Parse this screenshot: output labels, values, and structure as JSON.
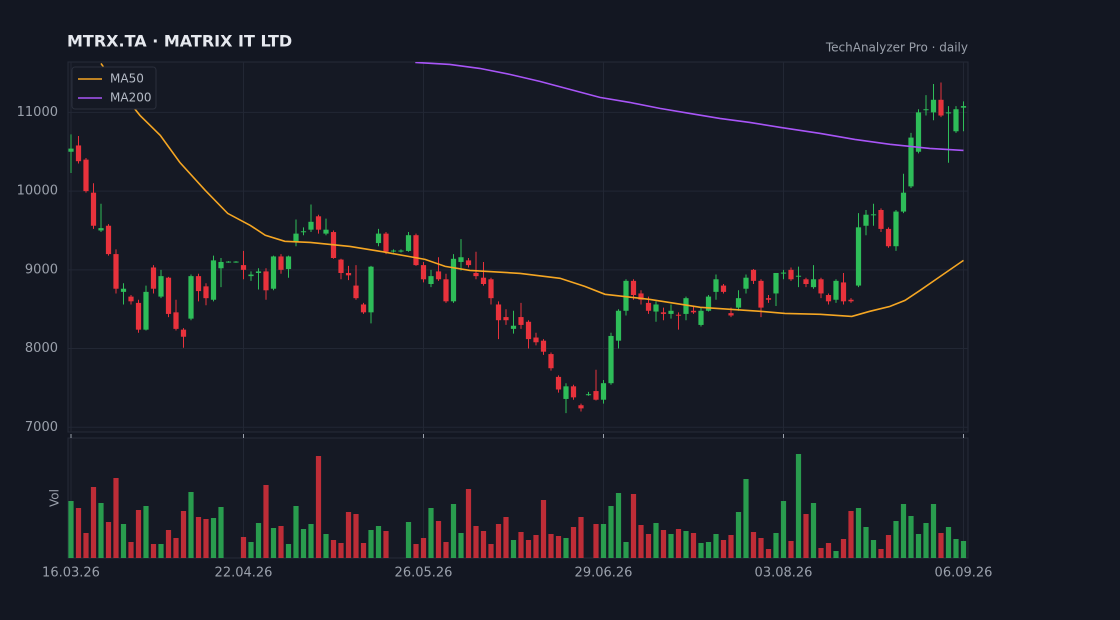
{
  "chart_data": {
    "type": "candlestick",
    "title": "MTRX.TA  ·  MATRIX IT LTD",
    "subtitle": "TechAnalyzer Pro · daily",
    "volume_label": "Vol",
    "up_color": "#2ebd59",
    "down_color": "#e8323c",
    "grid": true,
    "legend": "upper left",
    "x": [
      0,
      1,
      2,
      3,
      4,
      5,
      6,
      7,
      8,
      9,
      10,
      11,
      12,
      13,
      14,
      15,
      16,
      17,
      18,
      19,
      20,
      21,
      22,
      23,
      24,
      25,
      26,
      27,
      28,
      29,
      30,
      31,
      32,
      33,
      34,
      35,
      36,
      37,
      38,
      39,
      40,
      41,
      42,
      43,
      44,
      45,
      46,
      47,
      48,
      49,
      50,
      51,
      52,
      53,
      54,
      55,
      56,
      57,
      58,
      59,
      60,
      61,
      62,
      63,
      64,
      65,
      66,
      67,
      68,
      69,
      70,
      71,
      72,
      73,
      74,
      75,
      76,
      77,
      78,
      79,
      80,
      81,
      82,
      83,
      84,
      85,
      86,
      87,
      88,
      89,
      90,
      91,
      92,
      93,
      94,
      95,
      96,
      97,
      98,
      99,
      100,
      101,
      102,
      103,
      104,
      105,
      106,
      107,
      108,
      109,
      110,
      111,
      112,
      113,
      114,
      115,
      116,
      117,
      118,
      119
    ],
    "open": [
      10500,
      10580,
      10400,
      9980,
      9500,
      9560,
      9200,
      8720,
      8660,
      8580,
      8240,
      9030,
      8660,
      8900,
      8460,
      8240,
      8380,
      8920,
      8790,
      8620,
      9020,
      9100,
      9095,
      9060,
      8920,
      8960,
      8980,
      8760,
      9170,
      9010,
      9350,
      9480,
      9510,
      9680,
      9460,
      9480,
      9130,
      8960,
      8800,
      8560,
      8460,
      9340,
      9460,
      9235,
      9235,
      9240,
      9440,
      9060,
      8820,
      8980,
      8880,
      8600,
      9100,
      9120,
      8960,
      8900,
      8880,
      8560,
      8400,
      8250,
      8400,
      8340,
      8140,
      8100,
      7930,
      7640,
      7360,
      7520,
      7280,
      7410,
      7460,
      7350,
      7560,
      8100,
      8480,
      8860,
      8700,
      8580,
      8470,
      8460,
      8440,
      8430,
      8440,
      8480,
      8300,
      8480,
      8720,
      8800,
      8450,
      8520,
      8760,
      9000,
      8860,
      8640,
      8700,
      8955,
      9000,
      8920,
      8880,
      8780,
      8880,
      8680,
      8620,
      8840,
      8620,
      8800,
      9560,
      9695,
      9760,
      9520,
      9300,
      9740,
      10060,
      10500,
      11030,
      11000,
      11160,
      10990,
      10760,
      11060
    ],
    "high": [
      10720,
      10700,
      10420,
      10100,
      9840,
      9580,
      9260,
      8830,
      8680,
      8620,
      8800,
      9060,
      9000,
      8910,
      8620,
      8260,
      8940,
      8950,
      8830,
      9180,
      9150,
      9110,
      9110,
      9240,
      8980,
      9020,
      9020,
      9180,
      9200,
      9180,
      9640,
      9540,
      9830,
      9700,
      9650,
      9500,
      9140,
      9050,
      9060,
      8580,
      9050,
      9520,
      9480,
      9260,
      9260,
      9480,
      9460,
      9100,
      9000,
      9160,
      8950,
      9200,
      9390,
      9150,
      9230,
      9100,
      8900,
      8600,
      8500,
      8480,
      8580,
      8360,
      8200,
      8120,
      7950,
      7660,
      7560,
      7540,
      7300,
      7450,
      7730,
      7600,
      8200,
      8500,
      8880,
      8880,
      8740,
      8660,
      8600,
      8520,
      8560,
      8460,
      8660,
      8540,
      8520,
      8680,
      8940,
      8820,
      8520,
      8740,
      8940,
      9010,
      8880,
      8680,
      8960,
      9000,
      9030,
      9040,
      8900,
      9060,
      8900,
      8700,
      8880,
      8960,
      8640,
      9720,
      9760,
      9840,
      9780,
      9540,
      9760,
      10220,
      10740,
      11040,
      11220,
      11360,
      11380,
      11080,
      11080,
      11140
    ],
    "low": [
      10230,
      10350,
      9980,
      9520,
      9480,
      9180,
      8700,
      8560,
      8560,
      8200,
      8230,
      8700,
      8640,
      8400,
      8230,
      8010,
      8360,
      8600,
      8550,
      8600,
      8780,
      9090,
      9090,
      8880,
      8860,
      8750,
      8620,
      8740,
      8950,
      8900,
      9300,
      9440,
      9480,
      9460,
      9440,
      9140,
      8880,
      8870,
      8620,
      8440,
      8320,
      9300,
      9200,
      9220,
      9220,
      9230,
      9050,
      8840,
      8780,
      8860,
      8580,
      8580,
      8990,
      9030,
      8880,
      8800,
      8560,
      8120,
      8300,
      8190,
      8250,
      8000,
      8040,
      7920,
      7720,
      7440,
      7180,
      7350,
      7200,
      7400,
      7340,
      7300,
      7540,
      8000,
      8420,
      8620,
      8560,
      8440,
      8340,
      8360,
      8380,
      8240,
      8360,
      8440,
      8280,
      8470,
      8620,
      8700,
      8400,
      8480,
      8700,
      8820,
      8400,
      8580,
      8540,
      8880,
      8860,
      8780,
      8780,
      8760,
      8640,
      8560,
      8580,
      8560,
      8580,
      8780,
      9440,
      9560,
      9480,
      9280,
      9240,
      9720,
      10040,
      10480,
      10960,
      10900,
      10940,
      10360,
      10740,
      10760
    ],
    "close": [
      10540,
      10380,
      10000,
      9560,
      9530,
      9200,
      8760,
      8760,
      8600,
      8240,
      8720,
      8760,
      8920,
      8440,
      8250,
      8150,
      8920,
      8730,
      8640,
      9120,
      9100,
      9105,
      9105,
      9000,
      8940,
      8980,
      8740,
      9170,
      9000,
      9170,
      9460,
      9490,
      9610,
      9510,
      9510,
      9150,
      8960,
      8930,
      8640,
      8460,
      9040,
      9460,
      9230,
      9245,
      9245,
      9440,
      9060,
      8880,
      8920,
      8880,
      8600,
      9140,
      9160,
      9060,
      8920,
      8820,
      8640,
      8360,
      8360,
      8290,
      8300,
      8120,
      8080,
      7960,
      7750,
      7480,
      7520,
      7380,
      7240,
      7420,
      7350,
      7560,
      8160,
      8480,
      8860,
      8680,
      8620,
      8480,
      8560,
      8440,
      8480,
      8420,
      8640,
      8460,
      8480,
      8660,
      8880,
      8720,
      8420,
      8640,
      8900,
      8860,
      8520,
      8620,
      8960,
      8965,
      8880,
      8925,
      8820,
      8880,
      8700,
      8600,
      8860,
      8600,
      8600,
      9540,
      9700,
      9705,
      9520,
      9300,
      9740,
      9980,
      10680,
      11000,
      11040,
      11160,
      10960,
      11000,
      11040,
      11080
    ],
    "volume": [
      57,
      50,
      25,
      71,
      55,
      36,
      80,
      34,
      16,
      48,
      52,
      14,
      14,
      28,
      20,
      47,
      66,
      41,
      39,
      40,
      51,
      0,
      0,
      21,
      16,
      35,
      73,
      30,
      32,
      14,
      52,
      29,
      34,
      102,
      24,
      18,
      15,
      46,
      44,
      15,
      28,
      32,
      27,
      0,
      0,
      36,
      14,
      20,
      50,
      37,
      16,
      54,
      25,
      69,
      32,
      27,
      14,
      34,
      41,
      18,
      26,
      18,
      23,
      58,
      24,
      22,
      20,
      31,
      41,
      0,
      34,
      34,
      52,
      65,
      16,
      64,
      33,
      24,
      35,
      28,
      24,
      29,
      27,
      25,
      15,
      16,
      24,
      18,
      23,
      46,
      79,
      26,
      20,
      9,
      25,
      57,
      17,
      104,
      44,
      55,
      10,
      15,
      7,
      19,
      47,
      50,
      31,
      18,
      9,
      23,
      37,
      54,
      42,
      24,
      35,
      54,
      25,
      31,
      19,
      17
    ],
    "series": [
      {
        "name": "MA50",
        "color": "#f5a623",
        "x": [
          4,
          6.5,
          9.2,
          11.9,
          14.5,
          17.9,
          20.9,
          23.9,
          25.9,
          28.5,
          31.9,
          37.2,
          41.2,
          47.2,
          49.9,
          53.2,
          59.9,
          65.2,
          68.5,
          71.2,
          77.2,
          83.9,
          91.9,
          95.2,
          99.9,
          104.1,
          106.5,
          109.2,
          111.2,
          113.2,
          115.9,
          119
        ],
        "values": [
          11622,
          11279,
          10962,
          10708,
          10365,
          10010,
          9717,
          9565,
          9438,
          9362,
          9349,
          9298,
          9235,
          9133,
          9044,
          8993,
          8955,
          8892,
          8790,
          8689,
          8625,
          8524,
          8473,
          8447,
          8435,
          8409,
          8473,
          8536,
          8612,
          8739,
          8917,
          9120
        ]
      },
      {
        "name": "MA200",
        "color": "#a855f7",
        "x": [
          45.9,
          50.5,
          54.5,
          58.5,
          62.5,
          66.5,
          70.5,
          74.5,
          78.5,
          82.5,
          86.5,
          90.5,
          94.5,
          99.9,
          104.5,
          109.2,
          114.5,
          119
        ],
        "values": [
          11635,
          11610,
          11559,
          11483,
          11394,
          11292,
          11190,
          11127,
          11051,
          10987,
          10924,
          10873,
          10810,
          10733,
          10657,
          10594,
          10543,
          10517
        ]
      }
    ],
    "xlim": [
      -0.4,
      119.6
    ],
    "xticks": [
      {
        "value": 0,
        "label": "16.03.26"
      },
      {
        "value": 23,
        "label": "22.04.26"
      },
      {
        "value": 47,
        "label": "26.05.26"
      },
      {
        "value": 71,
        "label": "29.06.26"
      },
      {
        "value": 95,
        "label": "03.08.26"
      },
      {
        "value": 119,
        "label": "06.09.26"
      }
    ],
    "ylim": [
      6940,
      11640
    ],
    "yticks": [
      7000,
      8000,
      9000,
      10000,
      11000
    ],
    "vollim": [
      0,
      120
    ]
  }
}
